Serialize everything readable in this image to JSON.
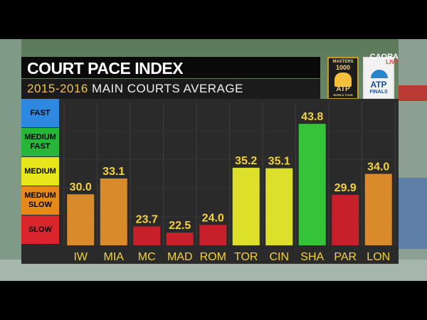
{
  "header": {
    "title": "COURT PACE INDEX",
    "subtitle_years": "2015-2016",
    "subtitle_rest": "MAIN COURTS AVERAGE"
  },
  "logos": {
    "masters": {
      "top": "MASTERS",
      "num": "1000",
      "brand": "ATP",
      "sub": "WORLD TOUR"
    },
    "finals": {
      "brand": "ATP",
      "sub": "FINALS"
    }
  },
  "broadcast": {
    "name": "CAORA",
    "tag": "LIVE"
  },
  "scale": [
    {
      "label": "FAST",
      "color": "#2f88e0"
    },
    {
      "label": "MEDIUM FAST",
      "color": "#27b53a"
    },
    {
      "label": "MEDIUM",
      "color": "#e6e61a"
    },
    {
      "label": "MEDIUM SLOW",
      "color": "#e58a1a"
    },
    {
      "label": "SLOW",
      "color": "#d8262c"
    }
  ],
  "chart_data": {
    "type": "bar",
    "title": "COURT PACE INDEX",
    "subtitle": "2015-2016 MAIN COURTS AVERAGE",
    "categories": [
      "IW",
      "MIA",
      "MC",
      "MAD",
      "ROM",
      "TOR",
      "CIN",
      "SHA",
      "PAR",
      "LON"
    ],
    "values": [
      30.0,
      33.1,
      23.7,
      22.5,
      24.0,
      35.2,
      35.1,
      43.8,
      29.9,
      34.0
    ],
    "labels": [
      "30.0",
      "33.1",
      "23.7",
      "22.5",
      "24.0",
      "35.2",
      "35.1",
      "43.8",
      "29.9",
      "34.0"
    ],
    "colors": [
      "#d98a2a",
      "#d98a2a",
      "#c8202a",
      "#c8202a",
      "#c8202a",
      "#dde02a",
      "#dde02a",
      "#35c33a",
      "#c8202a",
      "#d98a2a"
    ],
    "ylim": [
      20,
      48
    ],
    "grid": true
  }
}
